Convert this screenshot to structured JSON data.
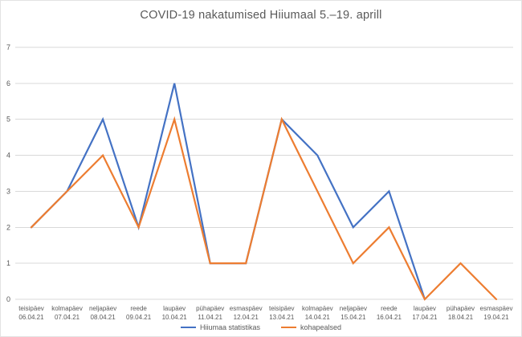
{
  "page": {
    "title": "COVID-19 nakatumised Hiiumaal 5.–19. aprill"
  },
  "chart_data": {
    "type": "line",
    "title": "COVID-19 nakatumised Hiiumaal 5.–19. aprill",
    "xlabel": "",
    "ylabel": "",
    "ylim": [
      0,
      7
    ],
    "ytick_step": 1,
    "yticks": [
      0,
      1,
      2,
      3,
      4,
      5,
      6,
      7
    ],
    "grid": "horizontal",
    "legend_position": "bottom-center",
    "categories": [
      {
        "day": "teisipäev",
        "date": "06.04.21"
      },
      {
        "day": "kolmapäev",
        "date": "07.04.21"
      },
      {
        "day": "neljapäev",
        "date": "08.04.21"
      },
      {
        "day": "reede",
        "date": "09.04.21"
      },
      {
        "day": "laupäev",
        "date": "10.04.21"
      },
      {
        "day": "pühapäev",
        "date": "11.04.21"
      },
      {
        "day": "esmaspäev",
        "date": "12.04.21"
      },
      {
        "day": "teisipäev",
        "date": "13.04.21"
      },
      {
        "day": "kolmapäev",
        "date": "14.04.21"
      },
      {
        "day": "neljapäev",
        "date": "15.04.21"
      },
      {
        "day": "reede",
        "date": "16.04.21"
      },
      {
        "day": "laupäev",
        "date": "17.04.21"
      },
      {
        "day": "pühapäev",
        "date": "18.04.21"
      },
      {
        "day": "esmaspäev",
        "date": "19.04.21"
      }
    ],
    "series": [
      {
        "name": "Hiiumaa statistikas",
        "color": "#4472C4",
        "values": [
          2,
          3,
          5,
          2,
          6,
          1,
          1,
          5,
          4,
          2,
          3,
          0,
          null,
          null
        ]
      },
      {
        "name": "kohapealsed",
        "color": "#ED7D31",
        "values": [
          2,
          3,
          4,
          2,
          5,
          1,
          1,
          5,
          3,
          1,
          2,
          0,
          1,
          0
        ]
      }
    ],
    "colors": {
      "title_text": "#595959",
      "axis_text": "#595959",
      "gridline": "#D9D9D9",
      "background": "#FFFFFF"
    }
  }
}
